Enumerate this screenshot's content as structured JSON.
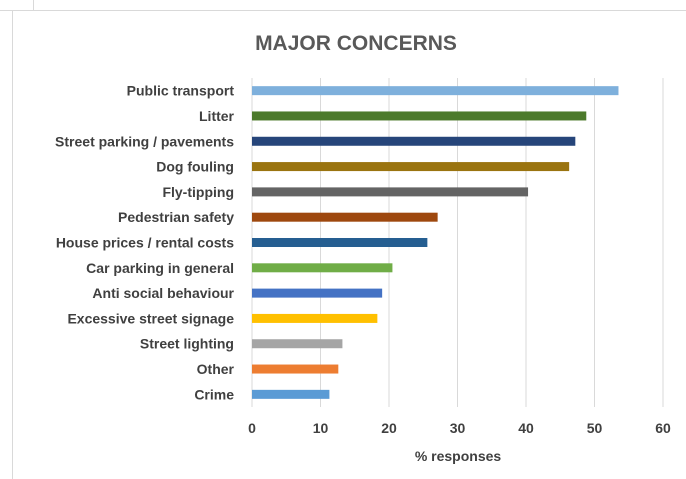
{
  "chart_data": {
    "type": "bar",
    "orientation": "horizontal",
    "title": "MAJOR CONCERNS",
    "xlabel": "% responses",
    "ylabel": "",
    "xlim": [
      0,
      60
    ],
    "xticks": [
      0,
      10,
      20,
      30,
      40,
      50,
      60
    ],
    "grid": "vertical",
    "categories": [
      "Public transport",
      "Litter",
      "Street parking / pavements",
      "Dog fouling",
      "Fly-tipping",
      "Pedestrian safety",
      "House prices / rental costs",
      "Car parking in general",
      "Anti social behaviour",
      "Excessive street signage",
      "Street lighting",
      "Other",
      "Crime"
    ],
    "values": [
      53.5,
      48.8,
      47.2,
      46.3,
      40.3,
      27.1,
      25.6,
      20.5,
      19.0,
      18.3,
      13.2,
      12.6,
      11.3
    ],
    "colors": [
      "#7eb0dc",
      "#4c7a2b",
      "#26457a",
      "#9a7410",
      "#646464",
      "#9e480e",
      "#255e91",
      "#70ad47",
      "#4472c4",
      "#ffc000",
      "#a5a5a5",
      "#ed7d31",
      "#5b9bd5"
    ]
  }
}
